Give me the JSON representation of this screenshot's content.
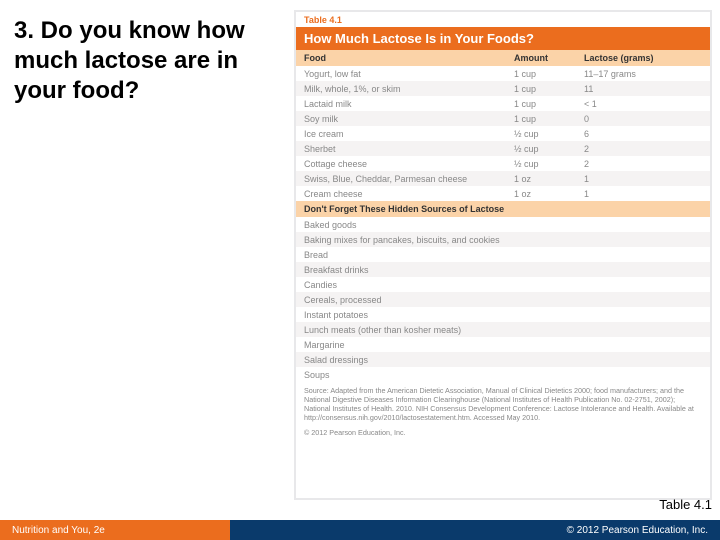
{
  "leftTitle": "3. Do you know how much lactose are in your food?",
  "table": {
    "label": "Table 4.1",
    "title": "How Much Lactose Is in Your Foods?",
    "headers": {
      "food": "Food",
      "amount": "Amount",
      "lactose": "Lactose (grams)"
    },
    "rows": [
      {
        "food": "Yogurt, low fat",
        "amount": "1 cup",
        "lactose": "11–17 grams"
      },
      {
        "food": "Milk, whole, 1%, or skim",
        "amount": "1 cup",
        "lactose": "11"
      },
      {
        "food": "Lactaid milk",
        "amount": "1 cup",
        "lactose": "< 1"
      },
      {
        "food": "Soy milk",
        "amount": "1 cup",
        "lactose": "0"
      },
      {
        "food": "Ice cream",
        "amount": "½ cup",
        "lactose": "6"
      },
      {
        "food": "Sherbet",
        "amount": "½ cup",
        "lactose": "2"
      },
      {
        "food": "Cottage cheese",
        "amount": "½ cup",
        "lactose": "2"
      },
      {
        "food": "Swiss, Blue, Cheddar, Parmesan cheese",
        "amount": "1 oz",
        "lactose": "1"
      },
      {
        "food": "Cream cheese",
        "amount": "1 oz",
        "lactose": "1"
      }
    ],
    "hiddenHeader": "Don't Forget These Hidden Sources of Lactose",
    "hiddenRows": [
      "Baked goods",
      "Baking mixes for pancakes, biscuits, and cookies",
      "Bread",
      "Breakfast drinks",
      "Candies",
      "Cereals, processed",
      "Instant potatoes",
      "Lunch meats (other than kosher meats)",
      "Margarine",
      "Salad dressings",
      "Soups"
    ],
    "source": "Source: Adapted from the American Dietetic Association, Manual of Clinical Dietetics 2000; food manufacturers; and the National Digestive Diseases Information Clearinghouse (National Institutes of Health Publication No. 02-2751, 2002); National Institutes of Health. 2010. NIH Consensus Development Conference: Lactose Intolerance and Health. Available at http://consensus.nih.gov/2010/lactosestatement.htm. Accessed May 2010.",
    "copyright": "© 2012 Pearson Education, Inc."
  },
  "reference": "Table 4.1",
  "footer": {
    "left": "Nutrition and You, 2e",
    "right": "© 2012 Pearson Education, Inc."
  },
  "colors": {
    "accent": "#eb6d1e",
    "dark": "#0a3a6b",
    "headBand": "#fbd3a8"
  }
}
